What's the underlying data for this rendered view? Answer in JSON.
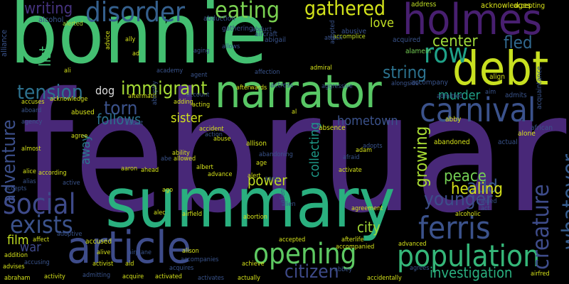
{
  "words": [
    {
      "t": "february",
      "c": "#482878"
    },
    {
      "t": "bonnie",
      "c": "#43bf71"
    },
    {
      "t": "summary",
      "c": "#2ab07f"
    },
    {
      "t": "holmes",
      "c": "#481f70"
    },
    {
      "t": "debt",
      "c": "#c8e020"
    },
    {
      "t": "narrator",
      "c": "#58c765"
    },
    {
      "t": "article",
      "c": "#3e4c8a"
    },
    {
      "t": "carnival",
      "c": "#3b528b"
    },
    {
      "t": "population",
      "c": "#35b779"
    },
    {
      "t": "opening",
      "c": "#5ec962"
    },
    {
      "t": "ferris",
      "c": "#3b528b"
    },
    {
      "t": "social",
      "c": "#3e4a89"
    },
    {
      "t": "creature",
      "c": "#3e4c8a"
    },
    {
      "t": "whatever",
      "c": "#365c8d"
    },
    {
      "t": "disorder",
      "c": "#35608d"
    },
    {
      "t": "exists",
      "c": "#3b528b"
    },
    {
      "t": "row",
      "c": "#1fa187"
    },
    {
      "t": "eating",
      "c": "#7ad151"
    },
    {
      "t": "gathered",
      "c": "#d2e21b"
    },
    {
      "t": "tension",
      "c": "#2d718e"
    },
    {
      "t": "immigrant",
      "c": "#a5db36"
    },
    {
      "t": "adventure",
      "c": "#3c4f8a"
    },
    {
      "t": "torn",
      "c": "#3b528b"
    },
    {
      "t": "fled",
      "c": "#31688e"
    },
    {
      "t": "center",
      "c": "#a0da39"
    },
    {
      "t": "string",
      "c": "#2c728e"
    },
    {
      "t": "growing",
      "c": "#a8db34"
    },
    {
      "t": "younger",
      "c": "#3d4e8a"
    },
    {
      "t": "add",
      "c": "#39568c"
    },
    {
      "t": "citizen",
      "c": "#3e4a89"
    },
    {
      "t": "healing",
      "c": "#d5e21a"
    },
    {
      "t": "peace",
      "c": "#75d054"
    },
    {
      "t": "writing",
      "c": "#46337f"
    },
    {
      "t": "list",
      "c": "#40bd72"
    },
    {
      "t": "love",
      "c": "#c0df25"
    },
    {
      "t": "sister",
      "c": "#d0e11c"
    },
    {
      "t": "follows",
      "c": "#2c728e"
    },
    {
      "t": "power",
      "c": "#c2df23"
    },
    {
      "t": "collecting",
      "c": "#1e9b8a"
    },
    {
      "t": "investigation",
      "c": "#2ab07f"
    },
    {
      "t": "hometown",
      "c": "#3b528b"
    },
    {
      "t": "murder",
      "c": "#1fa187"
    },
    {
      "t": "dog",
      "c": "#ddd"
    },
    {
      "t": "city",
      "c": "#a2da37"
    },
    {
      "t": "film",
      "c": "#c2df23"
    },
    {
      "t": "war",
      "c": "#3f4889"
    },
    {
      "t": "away",
      "c": "#2a788e"
    },
    {
      "t": "alcohol",
      "c": "#3a548c"
    },
    {
      "t": "abduction",
      "c": "#3a548c"
    },
    {
      "t": "gathering",
      "c": "#3d4e8a"
    },
    {
      "t": "address",
      "c": "#c0df25"
    },
    {
      "t": "acknowledges",
      "c": "#d8e219"
    },
    {
      "t": "accepting",
      "c": "#d8e219"
    },
    {
      "t": "alerted",
      "c": "#a8db34"
    },
    {
      "t": "abigail",
      "c": "#3a548c"
    },
    {
      "t": "alliance",
      "c": "#3a548c"
    },
    {
      "t": "aircraft",
      "c": "#3a548c"
    },
    {
      "t": "abusive",
      "c": "#3a548c"
    },
    {
      "t": "acquired",
      "c": "#3a548c"
    },
    {
      "t": "alamein",
      "c": "#75d054"
    },
    {
      "t": "admiral",
      "c": "#d5e21a"
    },
    {
      "t": "affection",
      "c": "#3a548c"
    },
    {
      "t": "academy",
      "c": "#3a548c"
    },
    {
      "t": "agent",
      "c": "#3a548c"
    },
    {
      "t": "afterwards",
      "c": "#d5e21a"
    },
    {
      "t": "actress",
      "c": "#3a548c"
    },
    {
      "t": "acting",
      "c": "#d5e21a"
    },
    {
      "t": "adding",
      "c": "#d5e21a"
    },
    {
      "t": "account",
      "c": "#3a548c"
    },
    {
      "t": "aftermath",
      "c": "#d5e21a"
    },
    {
      "t": "accomplice",
      "c": "#c0df25"
    },
    {
      "t": "alongside",
      "c": "#3a548c"
    },
    {
      "t": "accompany",
      "c": "#3a548c"
    },
    {
      "t": "admitted",
      "c": "#3a548c"
    },
    {
      "t": "admits",
      "c": "#3a548c"
    },
    {
      "t": "align",
      "c": "#d5e21a"
    },
    {
      "t": "acquaintance",
      "c": "#3a548c"
    },
    {
      "t": "accused",
      "c": "#d5e21a"
    },
    {
      "t": "abused",
      "c": "#d5e21a"
    },
    {
      "t": "addict",
      "c": "#3a548c"
    },
    {
      "t": "agree",
      "c": "#d5e21a"
    },
    {
      "t": "abby",
      "c": "#d5e21a"
    },
    {
      "t": "african",
      "c": "#3a548c"
    },
    {
      "t": "abandoned",
      "c": "#d5e21a"
    },
    {
      "t": "actual",
      "c": "#3a548c"
    },
    {
      "t": "alone",
      "c": "#d5e21a"
    },
    {
      "t": "absence",
      "c": "#d5e21a"
    },
    {
      "t": "accident",
      "c": "#d5e21a"
    },
    {
      "t": "ability",
      "c": "#d5e21a"
    },
    {
      "t": "allowed",
      "c": "#d5e21a"
    },
    {
      "t": "abandoning",
      "c": "#3a548c"
    },
    {
      "t": "adam",
      "c": "#d5e21a"
    },
    {
      "t": "afraid",
      "c": "#3a548c"
    },
    {
      "t": "adopts",
      "c": "#3a548c"
    },
    {
      "t": "aboard",
      "c": "#3a548c"
    },
    {
      "t": "agency",
      "c": "#3a548c"
    },
    {
      "t": "almost",
      "c": "#d5e21a"
    },
    {
      "t": "alice",
      "c": "#d5e21a"
    },
    {
      "t": "alias",
      "c": "#3a548c"
    },
    {
      "t": "according",
      "c": "#d5e21a"
    },
    {
      "t": "allison",
      "c": "#d5e21a"
    },
    {
      "t": "aaron",
      "c": "#d5e21a"
    },
    {
      "t": "ahead",
      "c": "#d5e21a"
    },
    {
      "t": "advance",
      "c": "#d5e21a"
    },
    {
      "t": "alert",
      "c": "#d5e21a"
    },
    {
      "t": "aang",
      "c": "#3a548c"
    },
    {
      "t": "activate",
      "c": "#d5e21a"
    },
    {
      "t": "active",
      "c": "#3a548c"
    },
    {
      "t": "accepts",
      "c": "#3a548c"
    },
    {
      "t": "ago",
      "c": "#d5e21a"
    },
    {
      "t": "aliens",
      "c": "#3a548c"
    },
    {
      "t": "alien",
      "c": "#3a548c"
    },
    {
      "t": "alec",
      "c": "#d5e21a"
    },
    {
      "t": "airfield",
      "c": "#d5e21a"
    },
    {
      "t": "abortion",
      "c": "#d5e21a"
    },
    {
      "t": "accepted",
      "c": "#d5e21a"
    },
    {
      "t": "afterlife",
      "c": "#d5e21a"
    },
    {
      "t": "accompanied",
      "c": "#d5e21a"
    },
    {
      "t": "advanced",
      "c": "#d5e21a"
    },
    {
      "t": "agreement",
      "c": "#d5e21a"
    },
    {
      "t": "alcoholic",
      "c": "#d5e21a"
    },
    {
      "t": "aided",
      "c": "#3a548c"
    },
    {
      "t": "affect",
      "c": "#d5e21a"
    },
    {
      "t": "adoptive",
      "c": "#3a548c"
    },
    {
      "t": "addition",
      "c": "#d5e21a"
    },
    {
      "t": "alive",
      "c": "#d5e21a"
    },
    {
      "t": "airplane",
      "c": "#3a548c"
    },
    {
      "t": "alison",
      "c": "#d5e21a"
    },
    {
      "t": "accompanies",
      "c": "#3a548c"
    },
    {
      "t": "achieve",
      "c": "#d5e21a"
    },
    {
      "t": "acquires",
      "c": "#3a548c"
    },
    {
      "t": "advises",
      "c": "#d5e21a"
    },
    {
      "t": "accusing",
      "c": "#3a548c"
    },
    {
      "t": "abraham",
      "c": "#d5e21a"
    },
    {
      "t": "activity",
      "c": "#d5e21a"
    },
    {
      "t": "admitting",
      "c": "#3a548c"
    },
    {
      "t": "activist",
      "c": "#d5e21a"
    },
    {
      "t": "aid",
      "c": "#d5e21a"
    },
    {
      "t": "acquire",
      "c": "#d5e21a"
    },
    {
      "t": "activated",
      "c": "#d5e21a"
    },
    {
      "t": "activates",
      "c": "#3a548c"
    },
    {
      "t": "actually",
      "c": "#d5e21a"
    },
    {
      "t": "accidentally",
      "c": "#d5e21a"
    },
    {
      "t": "agrees",
      "c": "#3a548c"
    },
    {
      "t": "abbey",
      "c": "#3a548c"
    },
    {
      "t": "airfred",
      "c": "#d5e21a"
    },
    {
      "t": "abe",
      "c": "#3a548c"
    },
    {
      "t": "ally",
      "c": "#d5e21a"
    },
    {
      "t": "ad",
      "c": "#d5e21a"
    },
    {
      "t": "ali",
      "c": "#d5e21a"
    },
    {
      "t": "al",
      "c": "#d5e21a"
    },
    {
      "t": "act",
      "c": "#3a548c"
    },
    {
      "t": "aim",
      "c": "#3a548c"
    },
    {
      "t": "allows",
      "c": "#3a548c"
    },
    {
      "t": "aging",
      "c": "#3a548c"
    },
    {
      "t": "action",
      "c": "#3a548c"
    },
    {
      "t": "albert",
      "c": "#d5e21a"
    },
    {
      "t": "abuse",
      "c": "#d5e21a"
    },
    {
      "t": "age",
      "c": "#d5e21a"
    },
    {
      "t": "abduct",
      "c": "#3a548c"
    },
    {
      "t": "acknowledge",
      "c": "#d5e21a"
    },
    {
      "t": "accuses",
      "c": "#d5e21a"
    },
    {
      "t": "abruptly",
      "c": "#3a548c"
    },
    {
      "t": "aggressive",
      "c": "#3a548c"
    },
    {
      "t": "adopted",
      "c": "#3a548c"
    },
    {
      "t": "advice",
      "c": "#d5e21a"
    },
    {
      "t": "attack",
      "c": "#3a548c"
    }
  ]
}
